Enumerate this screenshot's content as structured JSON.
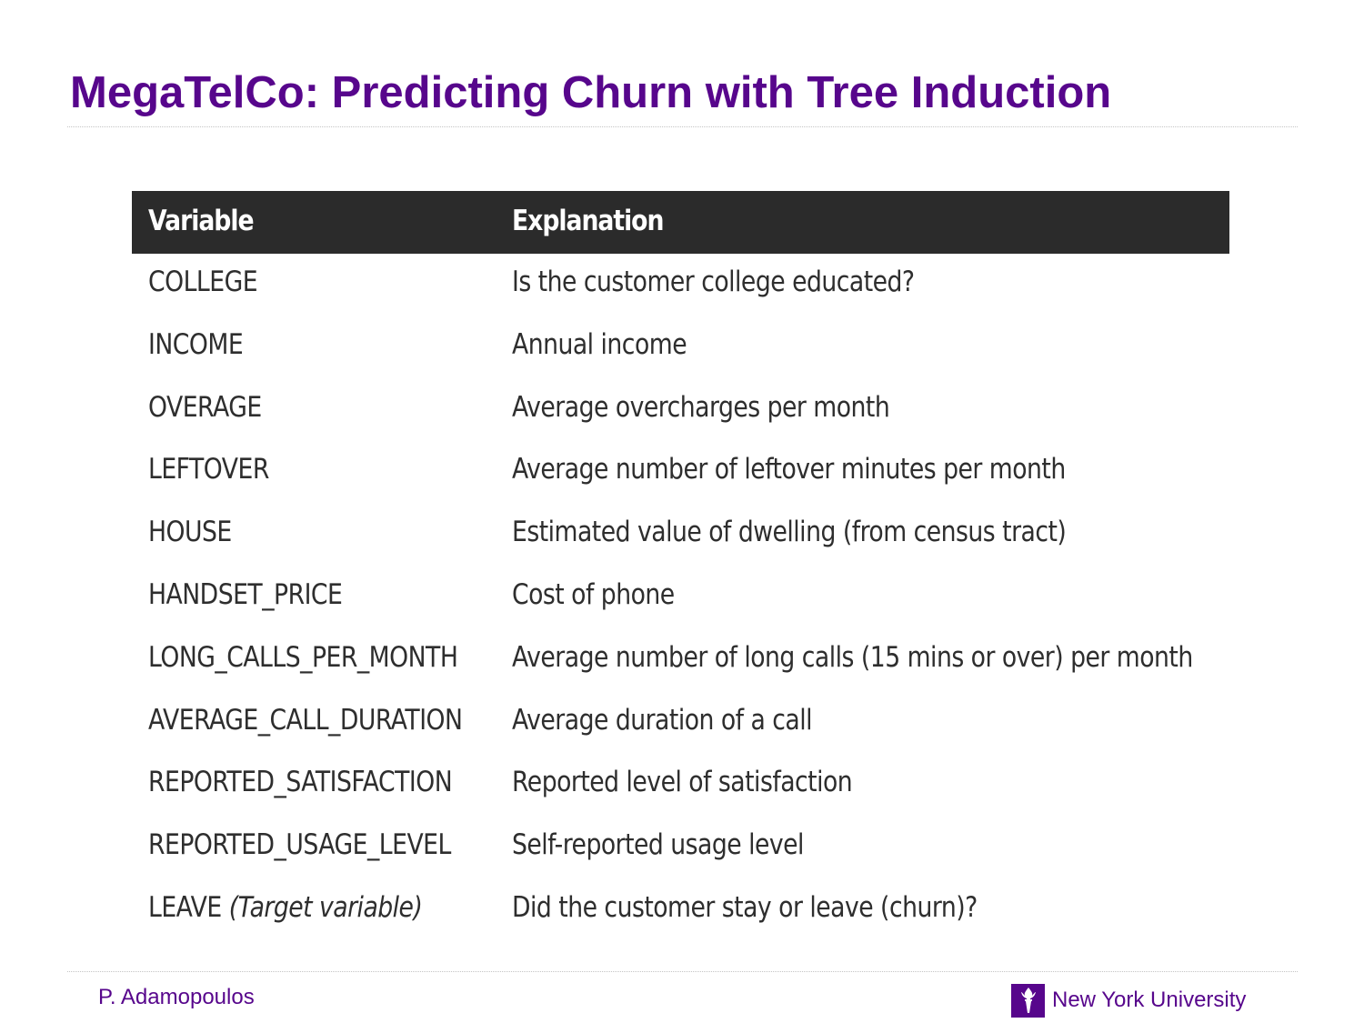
{
  "slide": {
    "title": "MegaTelCo: Predicting Churn with Tree Induction",
    "title_color": "#57068c"
  },
  "table": {
    "headers": {
      "variable": "Variable",
      "explanation": "Explanation"
    },
    "header_bg": "#2b2b2b",
    "rows": [
      {
        "variable": "COLLEGE",
        "explanation": "Is the customer college educated?"
      },
      {
        "variable": "INCOME",
        "explanation": "Annual income"
      },
      {
        "variable": "OVERAGE",
        "explanation": "Average overcharges per month"
      },
      {
        "variable": "LEFTOVER",
        "explanation": "Average number of leftover minutes per month"
      },
      {
        "variable": "HOUSE",
        "explanation": "Estimated value of dwelling (from census tract)"
      },
      {
        "variable": "HANDSET_PRICE",
        "explanation": "Cost of phone"
      },
      {
        "variable": "LONG_CALLS_PER_MONTH",
        "explanation": "Average number of long calls (15 mins or over) per month"
      },
      {
        "variable": "AVERAGE_CALL_DURATION",
        "explanation": "Average duration of a call"
      },
      {
        "variable": "REPORTED_SATISFACTION",
        "explanation": "Reported level of satisfaction"
      },
      {
        "variable": "REPORTED_USAGE_LEVEL",
        "explanation": "Self-reported usage level"
      },
      {
        "variable": "LEAVE",
        "note": "(Target variable)",
        "explanation": "Did the customer stay or leave (churn)?"
      }
    ]
  },
  "footer": {
    "author": "P. Adamopoulos",
    "university": "New York University",
    "logo_icon": "torch-icon"
  }
}
